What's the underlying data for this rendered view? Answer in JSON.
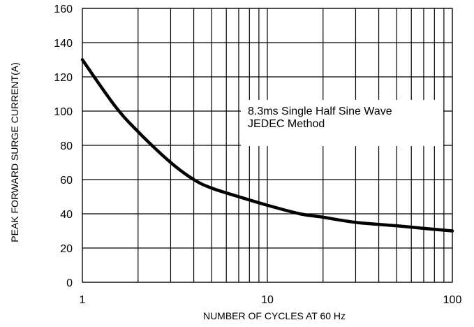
{
  "chart_data": {
    "type": "line",
    "xlabel": "NUMBER OF CYCLES AT 60 Hz",
    "ylabel": "PEAK FORWARD SURGE CURRENT(A)",
    "x_scale": "log",
    "xlim": [
      1,
      100
    ],
    "ylim": [
      0,
      160
    ],
    "grid": true,
    "x_tick_labels": [
      "1",
      "10",
      "100"
    ],
    "x_tick_values": [
      1,
      10,
      100
    ],
    "y_tick_values": [
      0,
      20,
      40,
      60,
      80,
      100,
      120,
      140,
      160
    ],
    "y_tick_labels": [
      "0",
      "20",
      "40",
      "60",
      "80",
      "100",
      "120",
      "140",
      "160"
    ],
    "series": [
      {
        "x": [
          1,
          1.5,
          2,
          3,
          4,
          5,
          7,
          10,
          15,
          20,
          30,
          50,
          70,
          100
        ],
        "y": [
          130,
          103,
          88,
          70,
          60,
          55,
          50,
          45,
          40,
          38,
          35,
          33,
          31.5,
          30
        ]
      }
    ],
    "annotation": {
      "lines": [
        "8.3ms Single Half Sine Wave",
        "JEDEC Method"
      ]
    },
    "colors": {
      "line": "#000000",
      "grid": "#000000",
      "background": "#ffffff"
    }
  }
}
